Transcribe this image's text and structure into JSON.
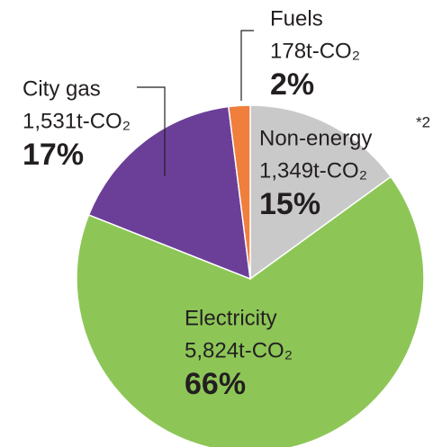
{
  "chart_data": {
    "type": "pie",
    "categories": [
      "Non-energy",
      "Electricity",
      "City gas",
      "Fuels"
    ],
    "values": [
      15,
      66,
      17,
      2
    ],
    "value_labels": [
      "15%",
      "66%",
      "17%",
      "2%"
    ],
    "amount_labels": [
      "1,349t-CO₂",
      "5,824t-CO₂",
      "1,531t-CO₂",
      "178t-CO₂"
    ],
    "colors": [
      "#c9c9c9",
      "#8dc657",
      "#6b3f98",
      "#f07e3c"
    ],
    "annotations": [
      "*2"
    ]
  }
}
